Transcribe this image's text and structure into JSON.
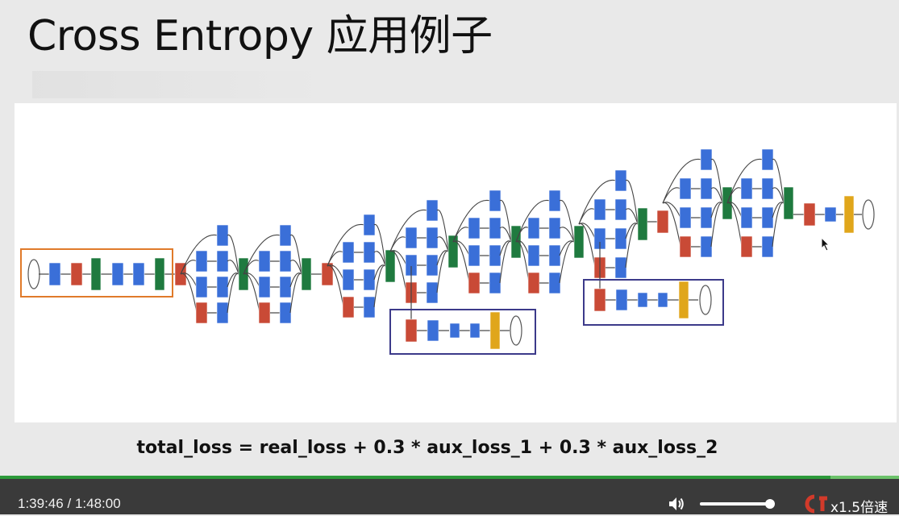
{
  "slide": {
    "title": "Cross Entropy 应用例子",
    "formula": "total_loss = real_loss + 0.3 * aux_loss_1 + 0.3 * aux_loss_2"
  },
  "diagram": {
    "colors": {
      "conv": "#3a6fd8",
      "pool": "#c94a36",
      "concat": "#1f7a3f",
      "softmax": "#e0a61b",
      "main_box": "#e07a2a",
      "aux_box": "#3c3a8a",
      "edge": "#444444"
    }
  },
  "player": {
    "current_time": "1:39:46",
    "separator": "/",
    "duration": "1:48:00",
    "progress_fraction": 0.924,
    "volume_fraction": 0.95,
    "speed_label": "x1.5倍速",
    "volume_icon": "speaker-icon",
    "fullscreen_logo": "csdn-logo"
  }
}
